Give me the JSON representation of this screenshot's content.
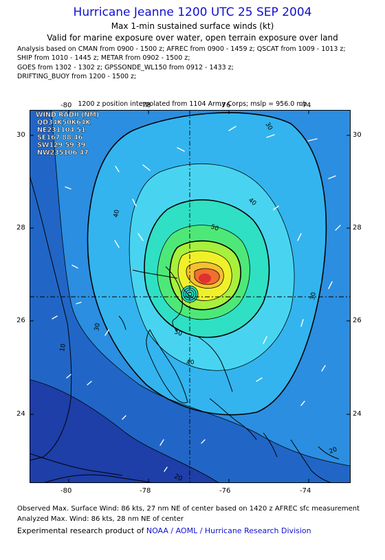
{
  "title": "Hurricane Jeanne 1200 UTC 25 SEP 2004",
  "subtitle1": "Max 1-min sustained surface winds (kt)",
  "subtitle2": "Valid for marine exposure over water, open terrain exposure over land",
  "analysis_lines": [
    "Analysis based on  CMAN from 0900 - 1500 z;  AFREC from 0900 - 1459 z;  QSCAT from 1009 - 1013 z;",
    "SHIP from 1010 - 1445 z;  METAR from 0902 - 1500 z;",
    "GOES from 1302 - 1302 z;  GPSSONDE_WL150 from 0912 - 1433 z;",
    "DRIFTING_BUOY from 1200 - 1500 z;"
  ],
  "interpolation_note": "1200 z position interpolated from 1104 Army Corps; mslp = 956.0 mb",
  "axes": {
    "lon_ticks": [
      "-80",
      "-78",
      "-76",
      "-74"
    ],
    "lat_ticks": [
      "30",
      "28",
      "26",
      "24"
    ]
  },
  "wind_radii": {
    "header": "WIND RADII (NM)",
    "rows": [
      "QD34K50K64K",
      "NE231104 51",
      "SE167 88 46",
      "SW129 59 39",
      "NW235106 47"
    ]
  },
  "contour_labels": [
    "30",
    "40",
    "50",
    "40",
    "30",
    "50",
    "40",
    "10",
    "20",
    "20",
    "30"
  ],
  "footer_observed": "Observed Max. Surface Wind: 86 kts, 27 nm NE of center based on 1420 z AFREC sfc measurement",
  "footer_analyzed": "Analyzed Max. Wind: 86 kts, 28 nm NE of center",
  "credit_prefix": "Experimental research product of",
  "credit_org": "NOAA / AOML / Hurricane Research Division",
  "colors": {
    "title": "#1010d0",
    "wind_bands": [
      "#1e3ea8",
      "#2166c6",
      "#2b8ee0",
      "#33b4ee",
      "#48d4f0",
      "#2fe0c4",
      "#4ee878",
      "#a8f03c",
      "#f0f02a",
      "#f8c030",
      "#f07030",
      "#e03030"
    ]
  },
  "map_values": {
    "center_lon": -76.95,
    "center_lat": 26.55,
    "max_wind_kt": 86
  }
}
